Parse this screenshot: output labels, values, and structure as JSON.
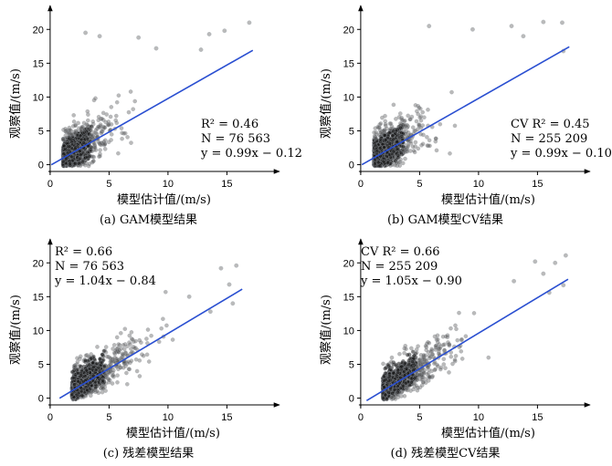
{
  "axis_label_x": "模型估计值/(m/s)",
  "axis_label_y": "观察值/(m/s)",
  "chart_data": [
    {
      "id": "a",
      "type": "scatter",
      "caption": "(a) GAM模型结果",
      "xlabel": "模型估计值/(m/s)",
      "ylabel": "观察值/(m/s)",
      "xlim": [
        -1,
        19
      ],
      "ylim": [
        -1,
        23
      ],
      "x_ticks": [
        0,
        5,
        10,
        15
      ],
      "y_ticks": [
        0,
        5,
        10,
        15,
        20
      ],
      "stats": {
        "r2": "R² = 0.46",
        "n": "N = 76 563",
        "eq": "y = 0.99x − 0.12"
      },
      "fit": {
        "slope": 0.99,
        "intercept": -0.12,
        "x_range": [
          0.1,
          17.2
        ]
      },
      "cloud": {
        "x_center": 1.9,
        "x_spread": 1.05,
        "noise": 1.7,
        "x_max": 12,
        "seed": 11
      },
      "outliers": [
        [
          3.0,
          19.5
        ],
        [
          4.2,
          19.0
        ],
        [
          7.5,
          18.8
        ],
        [
          13.5,
          19.3
        ],
        [
          14.8,
          19.8
        ],
        [
          16.9,
          21.0
        ],
        [
          12.8,
          17.0
        ],
        [
          9.0,
          17.2
        ]
      ],
      "grid": false,
      "stats_position": "right"
    },
    {
      "id": "b",
      "type": "scatter",
      "caption": "(b) GAM模型CV结果",
      "xlabel": "模型估计值/(m/s)",
      "ylabel": "观察值/(m/s)",
      "xlim": [
        -1,
        19
      ],
      "ylim": [
        -1,
        23
      ],
      "x_ticks": [
        0,
        5,
        10,
        15
      ],
      "y_ticks": [
        0,
        5,
        10,
        15,
        20
      ],
      "stats": {
        "r2": "CV R² = 0.45",
        "n": "N = 255 209",
        "eq": "y = 0.99x − 0.10"
      },
      "fit": {
        "slope": 0.99,
        "intercept": -0.1,
        "x_range": [
          0.1,
          17.7
        ]
      },
      "cloud": {
        "x_center": 2.0,
        "x_spread": 1.15,
        "noise": 1.8,
        "x_max": 12,
        "seed": 23
      },
      "outliers": [
        [
          5.8,
          20.5
        ],
        [
          9.5,
          20.0
        ],
        [
          12.8,
          20.5
        ],
        [
          15.5,
          21.1
        ],
        [
          17.1,
          21.0
        ],
        [
          13.8,
          19.0
        ],
        [
          17.2,
          16.8
        ]
      ],
      "grid": false,
      "stats_position": "right"
    },
    {
      "id": "c",
      "type": "scatter",
      "caption": "(c) 残差模型结果",
      "xlabel": "模型估计值/(m/s)",
      "ylabel": "观察值/(m/s)",
      "xlim": [
        -1,
        19
      ],
      "ylim": [
        -1,
        23
      ],
      "x_ticks": [
        0,
        5,
        10,
        15
      ],
      "y_ticks": [
        0,
        5,
        10,
        15,
        20
      ],
      "stats": {
        "r2": "R² = 0.66",
        "n": "N = 76 563",
        "eq": "y = 1.04x − 0.84"
      },
      "fit": {
        "slope": 1.04,
        "intercept": -0.84,
        "x_range": [
          0.8,
          16.3
        ]
      },
      "cloud": {
        "x_center": 3.0,
        "x_spread": 1.5,
        "noise": 1.15,
        "x_max": 12,
        "seed": 37
      },
      "outliers": [
        [
          14.5,
          19.2
        ],
        [
          15.8,
          19.6
        ],
        [
          15.2,
          16.8
        ],
        [
          11.8,
          15.0
        ],
        [
          15.5,
          14.0
        ],
        [
          13.6,
          12.8
        ]
      ],
      "grid": false,
      "stats_position": "left"
    },
    {
      "id": "d",
      "type": "scatter",
      "caption": "(d) 残差模型CV结果",
      "xlabel": "模型估计值/(m/s)",
      "ylabel": "观察值/(m/s)",
      "xlim": [
        -1,
        19
      ],
      "ylim": [
        -1,
        23
      ],
      "x_ticks": [
        0,
        5,
        10,
        15
      ],
      "y_ticks": [
        0,
        5,
        10,
        15,
        20
      ],
      "stats": {
        "r2": "CV R² = 0.66",
        "n": "N = 255 209",
        "eq": "y = 1.05x − 0.90"
      },
      "fit": {
        "slope": 1.05,
        "intercept": -0.9,
        "x_range": [
          0.5,
          17.6
        ]
      },
      "cloud": {
        "x_center": 3.1,
        "x_spread": 1.6,
        "noise": 1.2,
        "x_max": 13,
        "seed": 53
      },
      "outliers": [
        [
          14.8,
          20.2
        ],
        [
          16.5,
          20.0
        ],
        [
          17.4,
          21.1
        ],
        [
          15.5,
          18.4
        ],
        [
          13.0,
          17.3
        ],
        [
          17.2,
          16.7
        ],
        [
          16.0,
          15.6
        ]
      ],
      "grid": false,
      "stats_position": "left"
    }
  ]
}
